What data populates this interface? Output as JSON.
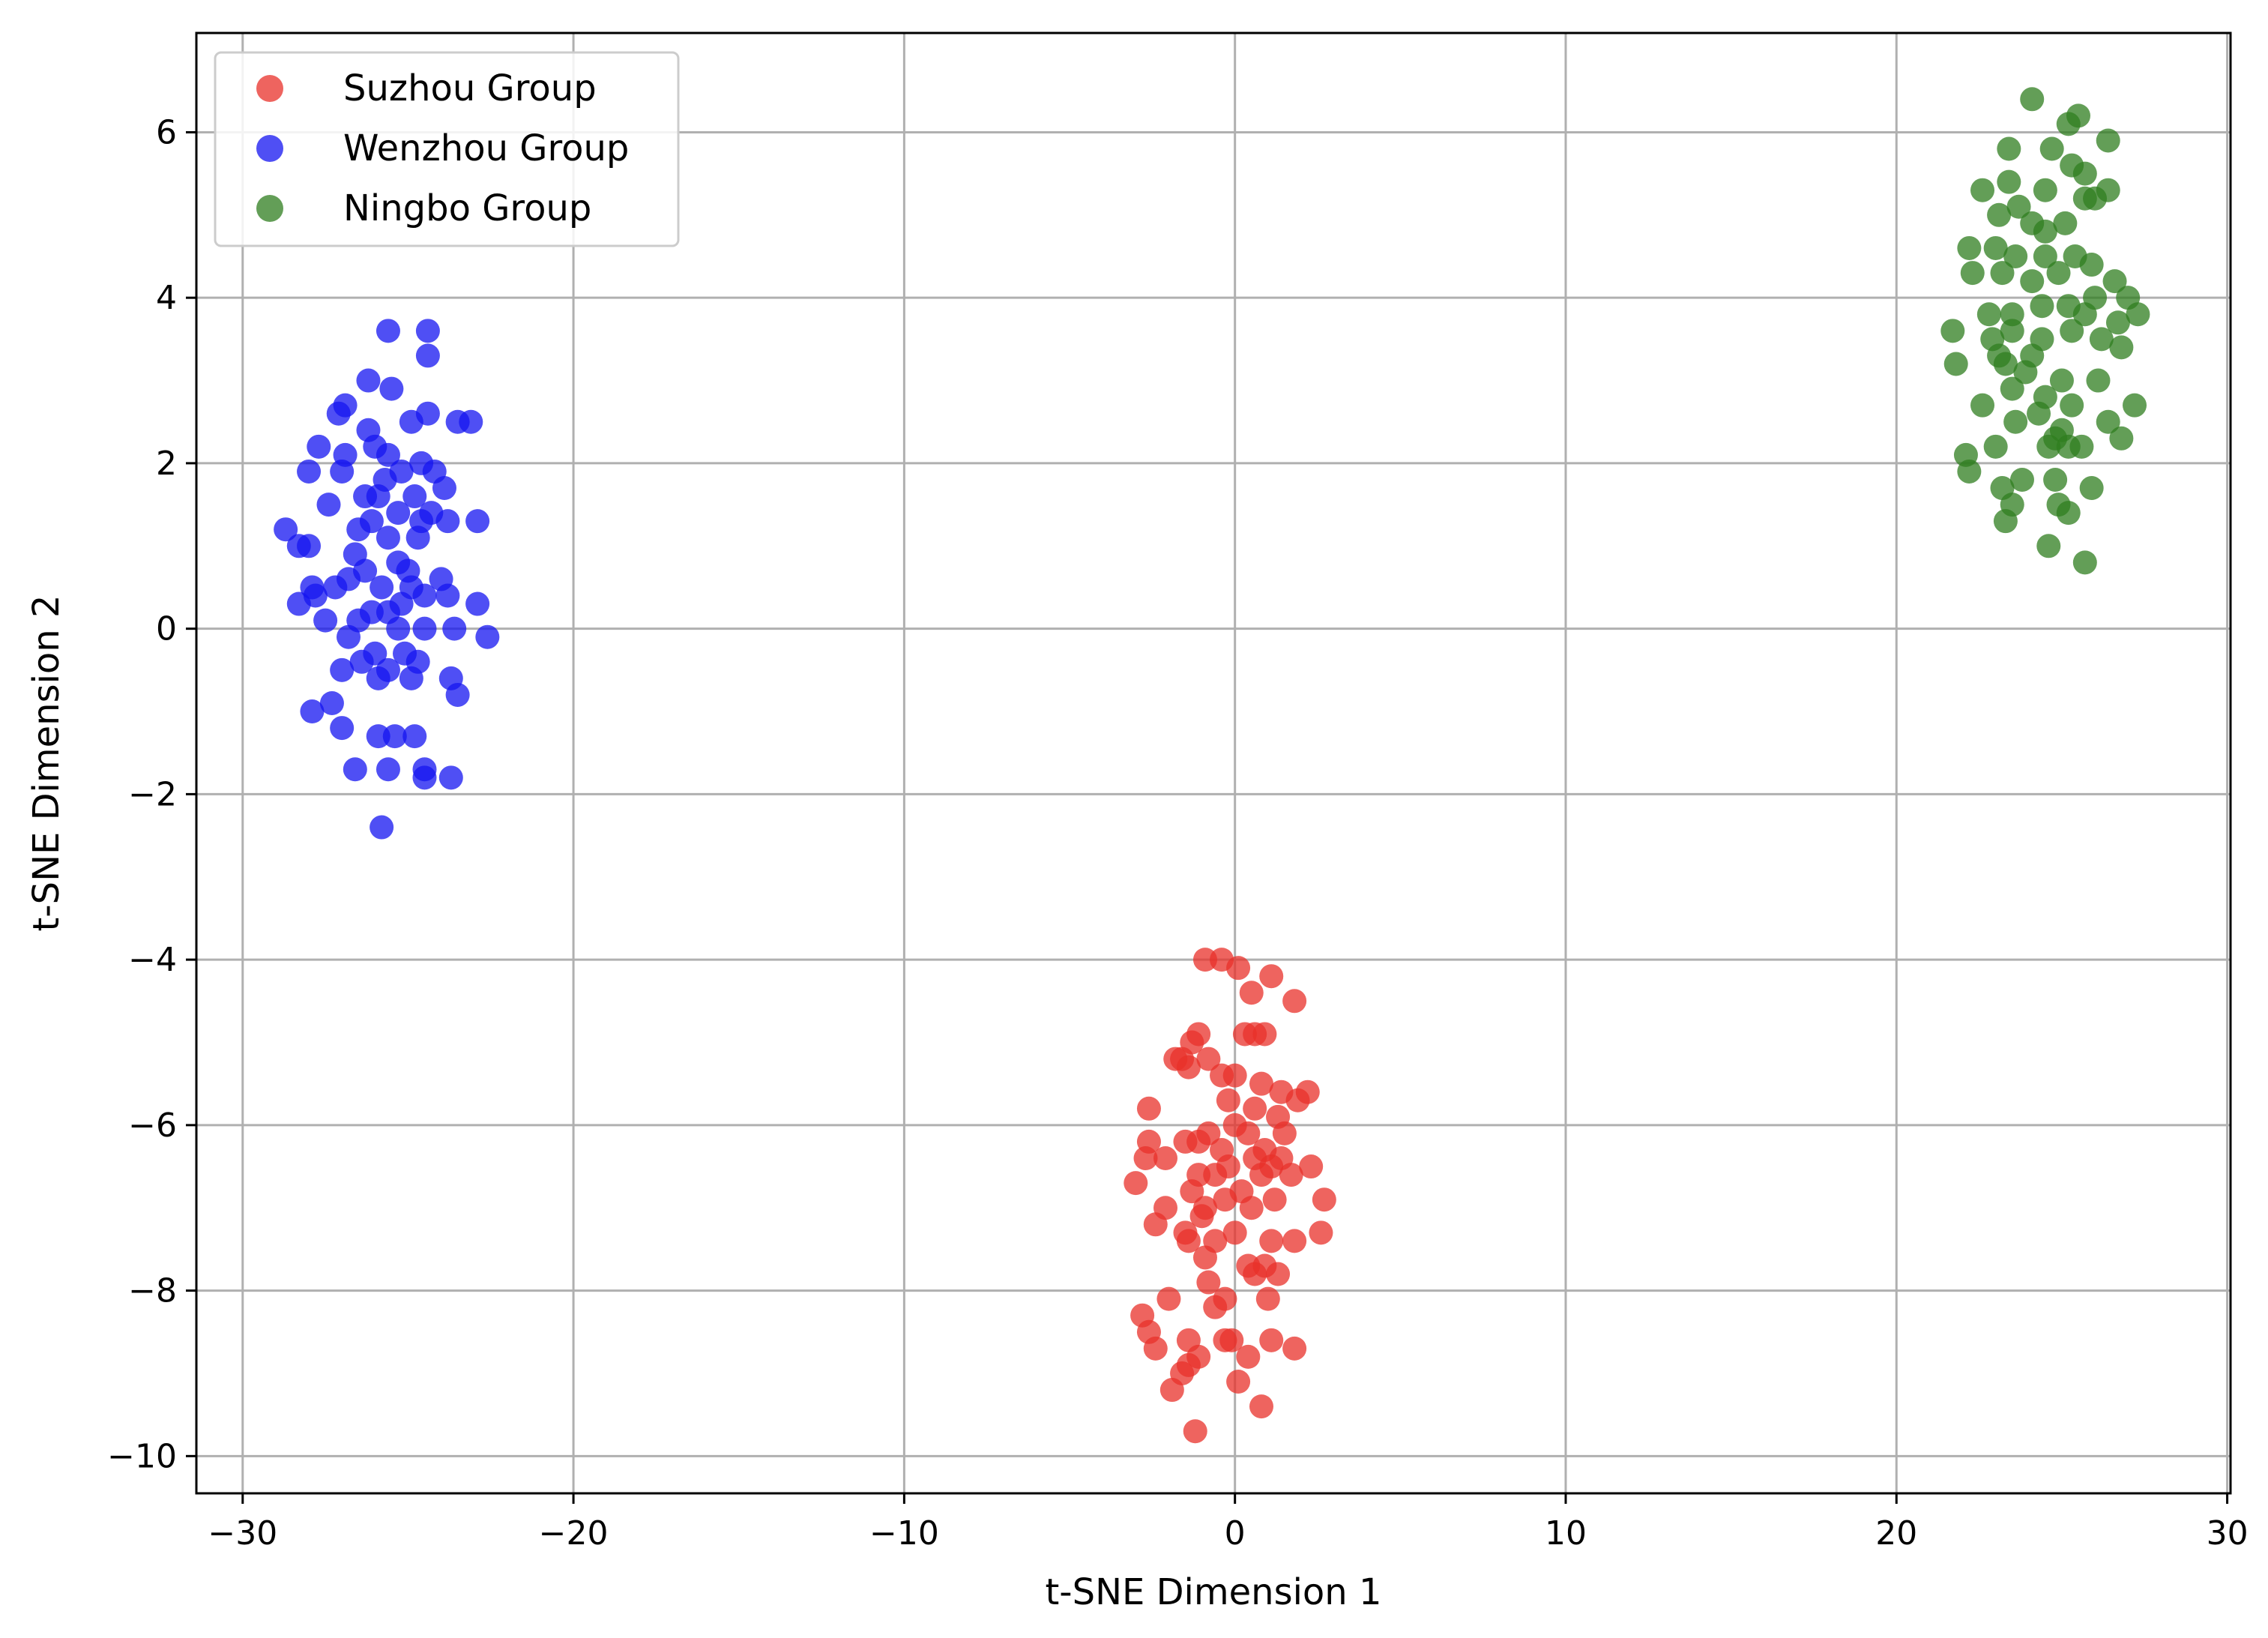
{
  "chart_data": {
    "type": "scatter",
    "title": "",
    "xlabel": "t-SNE Dimension 1",
    "ylabel": "t-SNE Dimension 2",
    "xlim": [
      -31.4,
      30.1
    ],
    "ylim": [
      -10.45,
      7.2
    ],
    "xticks": [
      -30,
      -20,
      -10,
      0,
      10,
      20,
      30
    ],
    "yticks": [
      -10,
      -8,
      -6,
      -4,
      -2,
      0,
      2,
      4,
      6
    ],
    "xtick_labels": [
      "−30",
      "−20",
      "−10",
      "0",
      "10",
      "20",
      "30"
    ],
    "ytick_labels": [
      "−10",
      "−8",
      "−6",
      "−4",
      "−2",
      "0",
      "2",
      "4",
      "6"
    ],
    "grid": true,
    "legend_position": "top-left",
    "series": [
      {
        "name": "Suzhou Group",
        "color": "#e8302a",
        "points": [
          [
            -0.9,
            -4.0
          ],
          [
            -0.4,
            -4.0
          ],
          [
            0.1,
            -4.1
          ],
          [
            1.1,
            -4.2
          ],
          [
            0.5,
            -4.4
          ],
          [
            1.8,
            -4.5
          ],
          [
            -1.1,
            -4.9
          ],
          [
            0.3,
            -4.9
          ],
          [
            0.6,
            -4.9
          ],
          [
            0.9,
            -4.9
          ],
          [
            -1.3,
            -5.0
          ],
          [
            -1.6,
            -5.2
          ],
          [
            -1.8,
            -5.2
          ],
          [
            -1.4,
            -5.3
          ],
          [
            -0.4,
            -5.4
          ],
          [
            0.0,
            -5.4
          ],
          [
            0.8,
            -5.5
          ],
          [
            -0.8,
            -5.2
          ],
          [
            1.4,
            -5.6
          ],
          [
            1.9,
            -5.7
          ],
          [
            2.2,
            -5.6
          ],
          [
            -0.2,
            -5.7
          ],
          [
            0.6,
            -5.8
          ],
          [
            -2.6,
            -5.8
          ],
          [
            1.3,
            -5.9
          ],
          [
            0.0,
            -6.0
          ],
          [
            -0.8,
            -6.1
          ],
          [
            0.4,
            -6.1
          ],
          [
            1.5,
            -6.1
          ],
          [
            -1.5,
            -6.2
          ],
          [
            -1.1,
            -6.2
          ],
          [
            -2.6,
            -6.2
          ],
          [
            0.9,
            -6.3
          ],
          [
            -0.4,
            -6.3
          ],
          [
            1.4,
            -6.4
          ],
          [
            1.1,
            -6.5
          ],
          [
            0.6,
            -6.4
          ],
          [
            -2.7,
            -6.4
          ],
          [
            -2.1,
            -6.4
          ],
          [
            -0.2,
            -6.5
          ],
          [
            0.8,
            -6.6
          ],
          [
            1.7,
            -6.6
          ],
          [
            2.3,
            -6.5
          ],
          [
            -0.6,
            -6.6
          ],
          [
            -1.1,
            -6.6
          ],
          [
            -1.3,
            -6.8
          ],
          [
            0.2,
            -6.8
          ],
          [
            -3.0,
            -6.7
          ],
          [
            -0.3,
            -6.9
          ],
          [
            1.2,
            -6.9
          ],
          [
            2.7,
            -6.9
          ],
          [
            -2.1,
            -7.0
          ],
          [
            0.5,
            -7.0
          ],
          [
            -0.9,
            -7.0
          ],
          [
            -1.0,
            -7.1
          ],
          [
            -2.4,
            -7.2
          ],
          [
            2.6,
            -7.3
          ],
          [
            0.0,
            -7.3
          ],
          [
            -1.5,
            -7.3
          ],
          [
            -0.6,
            -7.4
          ],
          [
            1.1,
            -7.4
          ],
          [
            1.8,
            -7.4
          ],
          [
            -1.4,
            -7.4
          ],
          [
            -0.9,
            -7.6
          ],
          [
            0.4,
            -7.7
          ],
          [
            0.9,
            -7.7
          ],
          [
            1.3,
            -7.8
          ],
          [
            -0.8,
            -7.9
          ],
          [
            0.6,
            -7.8
          ],
          [
            -2.0,
            -8.1
          ],
          [
            -0.3,
            -8.1
          ],
          [
            1.0,
            -8.1
          ],
          [
            -0.6,
            -8.2
          ],
          [
            -2.8,
            -8.3
          ],
          [
            -2.6,
            -8.5
          ],
          [
            -1.4,
            -8.6
          ],
          [
            -0.1,
            -8.6
          ],
          [
            1.1,
            -8.6
          ],
          [
            -0.3,
            -8.6
          ],
          [
            -2.4,
            -8.7
          ],
          [
            -1.1,
            -8.8
          ],
          [
            0.4,
            -8.8
          ],
          [
            1.8,
            -8.7
          ],
          [
            -1.6,
            -9.0
          ],
          [
            -1.4,
            -8.9
          ],
          [
            0.1,
            -9.1
          ],
          [
            -1.9,
            -9.2
          ],
          [
            0.8,
            -9.4
          ],
          [
            -1.2,
            -9.7
          ]
        ]
      },
      {
        "name": "Wenzhou Group",
        "color": "#1414f0",
        "points": [
          [
            -25.6,
            3.6
          ],
          [
            -24.4,
            3.6
          ],
          [
            -24.4,
            3.3
          ],
          [
            -26.2,
            3.0
          ],
          [
            -25.5,
            2.9
          ],
          [
            -26.9,
            2.7
          ],
          [
            -27.1,
            2.6
          ],
          [
            -24.4,
            2.6
          ],
          [
            -23.5,
            2.5
          ],
          [
            -23.1,
            2.5
          ],
          [
            -26.2,
            2.4
          ],
          [
            -24.9,
            2.5
          ],
          [
            -27.7,
            2.2
          ],
          [
            -26.0,
            2.2
          ],
          [
            -25.6,
            2.1
          ],
          [
            -24.6,
            2.0
          ],
          [
            -26.9,
            2.1
          ],
          [
            -28.0,
            1.9
          ],
          [
            -27.0,
            1.9
          ],
          [
            -25.2,
            1.9
          ],
          [
            -24.2,
            1.9
          ],
          [
            -25.7,
            1.8
          ],
          [
            -23.9,
            1.7
          ],
          [
            -26.3,
            1.6
          ],
          [
            -25.9,
            1.6
          ],
          [
            -24.8,
            1.6
          ],
          [
            -24.3,
            1.4
          ],
          [
            -27.4,
            1.5
          ],
          [
            -26.1,
            1.3
          ],
          [
            -25.3,
            1.4
          ],
          [
            -24.6,
            1.3
          ],
          [
            -23.8,
            1.3
          ],
          [
            -22.9,
            1.3
          ],
          [
            -26.5,
            1.2
          ],
          [
            -28.7,
            1.2
          ],
          [
            -28.3,
            1.0
          ],
          [
            -28.0,
            1.0
          ],
          [
            -25.6,
            1.1
          ],
          [
            -24.7,
            1.1
          ],
          [
            -26.6,
            0.9
          ],
          [
            -25.3,
            0.8
          ],
          [
            -25.0,
            0.7
          ],
          [
            -26.3,
            0.7
          ],
          [
            -26.8,
            0.6
          ],
          [
            -27.9,
            0.5
          ],
          [
            -27.2,
            0.5
          ],
          [
            -25.8,
            0.5
          ],
          [
            -24.9,
            0.5
          ],
          [
            -24.0,
            0.6
          ],
          [
            -27.8,
            0.4
          ],
          [
            -28.3,
            0.3
          ],
          [
            -25.2,
            0.3
          ],
          [
            -24.5,
            0.4
          ],
          [
            -23.8,
            0.4
          ],
          [
            -22.9,
            0.3
          ],
          [
            -26.5,
            0.1
          ],
          [
            -26.1,
            0.2
          ],
          [
            -25.6,
            0.2
          ],
          [
            -27.5,
            0.1
          ],
          [
            -25.3,
            0.0
          ],
          [
            -24.5,
            0.0
          ],
          [
            -23.6,
            0.0
          ],
          [
            -26.8,
            -0.1
          ],
          [
            -22.6,
            -0.1
          ],
          [
            -26.0,
            -0.3
          ],
          [
            -25.1,
            -0.3
          ],
          [
            -24.7,
            -0.4
          ],
          [
            -25.6,
            -0.5
          ],
          [
            -26.4,
            -0.4
          ],
          [
            -27.0,
            -0.5
          ],
          [
            -25.9,
            -0.6
          ],
          [
            -24.9,
            -0.6
          ],
          [
            -23.7,
            -0.6
          ],
          [
            -23.5,
            -0.8
          ],
          [
            -27.3,
            -0.9
          ],
          [
            -27.9,
            -1.0
          ],
          [
            -27.0,
            -1.2
          ],
          [
            -25.9,
            -1.3
          ],
          [
            -25.4,
            -1.3
          ],
          [
            -24.8,
            -1.3
          ],
          [
            -26.6,
            -1.7
          ],
          [
            -25.6,
            -1.7
          ],
          [
            -24.5,
            -1.7
          ],
          [
            -24.5,
            -1.8
          ],
          [
            -23.7,
            -1.8
          ],
          [
            -25.8,
            -2.4
          ]
        ]
      },
      {
        "name": "Ningbo Group",
        "color": "#2f7d1f",
        "points": [
          [
            24.1,
            6.4
          ],
          [
            25.5,
            6.2
          ],
          [
            25.2,
            6.1
          ],
          [
            26.4,
            5.9
          ],
          [
            23.4,
            5.8
          ],
          [
            24.7,
            5.8
          ],
          [
            25.3,
            5.6
          ],
          [
            23.4,
            5.4
          ],
          [
            25.7,
            5.5
          ],
          [
            22.6,
            5.3
          ],
          [
            24.5,
            5.3
          ],
          [
            25.7,
            5.2
          ],
          [
            26.0,
            5.2
          ],
          [
            26.4,
            5.3
          ],
          [
            23.7,
            5.1
          ],
          [
            23.1,
            5.0
          ],
          [
            24.1,
            4.9
          ],
          [
            24.5,
            4.8
          ],
          [
            25.1,
            4.9
          ],
          [
            22.2,
            4.6
          ],
          [
            23.0,
            4.6
          ],
          [
            23.6,
            4.5
          ],
          [
            24.5,
            4.5
          ],
          [
            25.4,
            4.5
          ],
          [
            25.9,
            4.4
          ],
          [
            22.3,
            4.3
          ],
          [
            23.2,
            4.3
          ],
          [
            24.1,
            4.2
          ],
          [
            24.9,
            4.3
          ],
          [
            26.6,
            4.2
          ],
          [
            26.0,
            4.0
          ],
          [
            27.0,
            4.0
          ],
          [
            25.2,
            3.9
          ],
          [
            24.4,
            3.9
          ],
          [
            23.5,
            3.8
          ],
          [
            22.8,
            3.8
          ],
          [
            25.7,
            3.8
          ],
          [
            26.7,
            3.7
          ],
          [
            27.3,
            3.8
          ],
          [
            21.7,
            3.6
          ],
          [
            22.9,
            3.5
          ],
          [
            23.5,
            3.6
          ],
          [
            24.4,
            3.5
          ],
          [
            25.3,
            3.6
          ],
          [
            26.2,
            3.5
          ],
          [
            23.1,
            3.3
          ],
          [
            24.1,
            3.3
          ],
          [
            26.8,
            3.4
          ],
          [
            21.8,
            3.2
          ],
          [
            23.3,
            3.2
          ],
          [
            23.9,
            3.1
          ],
          [
            25.0,
            3.0
          ],
          [
            26.1,
            3.0
          ],
          [
            23.5,
            2.9
          ],
          [
            24.5,
            2.8
          ],
          [
            25.3,
            2.7
          ],
          [
            22.6,
            2.7
          ],
          [
            24.3,
            2.6
          ],
          [
            27.2,
            2.7
          ],
          [
            26.4,
            2.5
          ],
          [
            23.6,
            2.5
          ],
          [
            25.0,
            2.4
          ],
          [
            24.8,
            2.3
          ],
          [
            25.2,
            2.2
          ],
          [
            23.0,
            2.2
          ],
          [
            24.6,
            2.2
          ],
          [
            25.6,
            2.2
          ],
          [
            26.8,
            2.3
          ],
          [
            22.1,
            2.1
          ],
          [
            22.2,
            1.9
          ],
          [
            23.8,
            1.8
          ],
          [
            24.8,
            1.8
          ],
          [
            25.9,
            1.7
          ],
          [
            23.2,
            1.7
          ],
          [
            23.5,
            1.5
          ],
          [
            24.9,
            1.5
          ],
          [
            25.2,
            1.4
          ],
          [
            23.3,
            1.3
          ],
          [
            24.6,
            1.0
          ],
          [
            25.7,
            0.8
          ]
        ]
      }
    ]
  }
}
